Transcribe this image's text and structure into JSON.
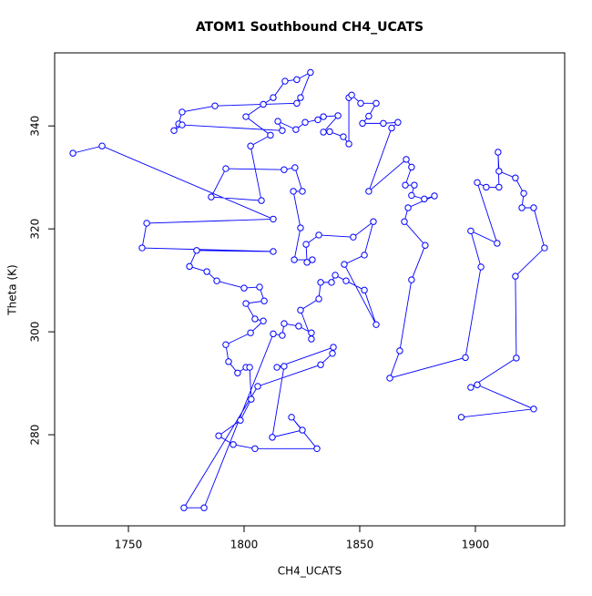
{
  "chart_data": {
    "type": "line",
    "title": "ATOM1 Southbound CH4_UCATS",
    "x_label": "CH4_UCATS",
    "y_label": "Theta (K)",
    "color": "#0000ff",
    "markers": "open-circle",
    "xlim": [
      1718.1,
      1938.6
    ],
    "ylim": [
      262.3,
      354.2
    ],
    "xticks": [
      1750,
      1800,
      1850,
      1900
    ],
    "yticks": [
      280,
      300,
      320,
      340
    ],
    "x": [
      1726.0,
      1738.6,
      1812.6,
      1757.9,
      1755.9,
      1812.6,
      1779.5,
      1776.4,
      1783.9,
      1788.2,
      1800.0,
      1806.7,
      1808.7,
      1800.8,
      1804.7,
      1808.3,
      1802.8,
      1792.1,
      1793.3,
      1797.2,
      1800.8,
      1802.4,
      1803.1,
      1798.4,
      1789.0,
      1795.3,
      1804.7,
      1831.5,
      1820.5,
      1825.2,
      1812.2,
      1817.3,
      1814.2,
      1838.6,
      1838.2,
      1833.1,
      1805.9,
      1774.0,
      1782.7,
      1812.6,
      1816.5,
      1817.3,
      1823.6,
      1829.1,
      1829.1,
      1824.4,
      1832.3,
      1833.1,
      1837.8,
      1839.4,
      1844.1,
      1852.0,
      1857.1,
      1843.3,
      1852.0,
      1855.9,
      1847.2,
      1832.3,
      1826.8,
      1827.2,
      1829.5,
      1821.7,
      1824.4,
      1821.3,
      1825.2,
      1822.0,
      1817.3,
      1792.1,
      1785.8,
      1807.5,
      1802.8,
      1811.4,
      1800.8,
      1808.3,
      1812.6,
      1817.7,
      1822.8,
      1828.7,
      1824.4,
      1822.8,
      1787.4,
      1773.2,
      1771.7,
      1769.7,
      1773.2,
      1816.5,
      1814.6,
      1822.4,
      1826.4,
      1831.9,
      1834.3,
      1840.6,
      1834.3,
      1837.0,
      1842.9,
      1845.3,
      1845.3,
      1846.5,
      1850.4,
      1857.1,
      1853.9,
      1851.2,
      1860.2,
      1866.5,
      1863.8,
      1853.9,
      1870.1,
      1872.4,
      1869.7,
      1873.6,
      1872.4,
      1877.9,
      1882.3,
      1870.9,
      1869.3,
      1878.3,
      1872.4,
      1867.3,
      1863.0,
      1895.7,
      1902.4,
      1898.0,
      1909.4,
      1900.8,
      1904.7,
      1910.2,
      1909.8,
      1910.2,
      1917.3,
      1920.9,
      1920.1,
      1925.2,
      1929.9,
      1917.3,
      1917.7,
      1898.0,
      1900.8,
      1925.2,
      1893.9
    ],
    "y": [
      334.7,
      336.1,
      321.9,
      321.1,
      316.3,
      315.6,
      315.8,
      312.7,
      311.7,
      309.9,
      308.5,
      308.7,
      306.0,
      305.5,
      302.5,
      302.1,
      299.8,
      297.5,
      294.2,
      292.0,
      293.1,
      293.1,
      286.9,
      282.8,
      279.8,
      278.1,
      277.3,
      277.3,
      283.4,
      280.9,
      279.5,
      293.3,
      293.1,
      297.0,
      295.8,
      293.6,
      289.4,
      265.8,
      265.8,
      299.6,
      299.3,
      301.6,
      301.1,
      299.8,
      298.6,
      304.2,
      306.4,
      309.6,
      309.6,
      311.0,
      309.9,
      308.1,
      301.4,
      313.1,
      314.9,
      321.4,
      318.4,
      318.8,
      317.0,
      313.5,
      314.0,
      314.0,
      320.2,
      327.3,
      327.3,
      331.9,
      331.5,
      331.7,
      326.2,
      325.5,
      336.1,
      338.2,
      341.8,
      344.2,
      345.5,
      348.7,
      349.0,
      350.4,
      345.5,
      344.4,
      343.9,
      342.7,
      340.4,
      339.1,
      340.2,
      339.1,
      340.9,
      339.3,
      340.7,
      341.2,
      341.8,
      342.0,
      338.8,
      338.9,
      337.9,
      336.5,
      345.5,
      346.0,
      344.4,
      344.4,
      341.9,
      340.5,
      340.5,
      340.7,
      339.6,
      327.3,
      333.5,
      332.0,
      328.5,
      328.5,
      326.5,
      325.8,
      326.4,
      324.1,
      321.4,
      316.8,
      310.1,
      296.3,
      291.0,
      295.0,
      312.6,
      319.6,
      317.2,
      329.0,
      328.1,
      328.1,
      334.9,
      331.2,
      329.9,
      326.9,
      324.1,
      324.1,
      316.3,
      310.8,
      294.9,
      289.2,
      289.7,
      285.0,
      283.4
    ]
  }
}
